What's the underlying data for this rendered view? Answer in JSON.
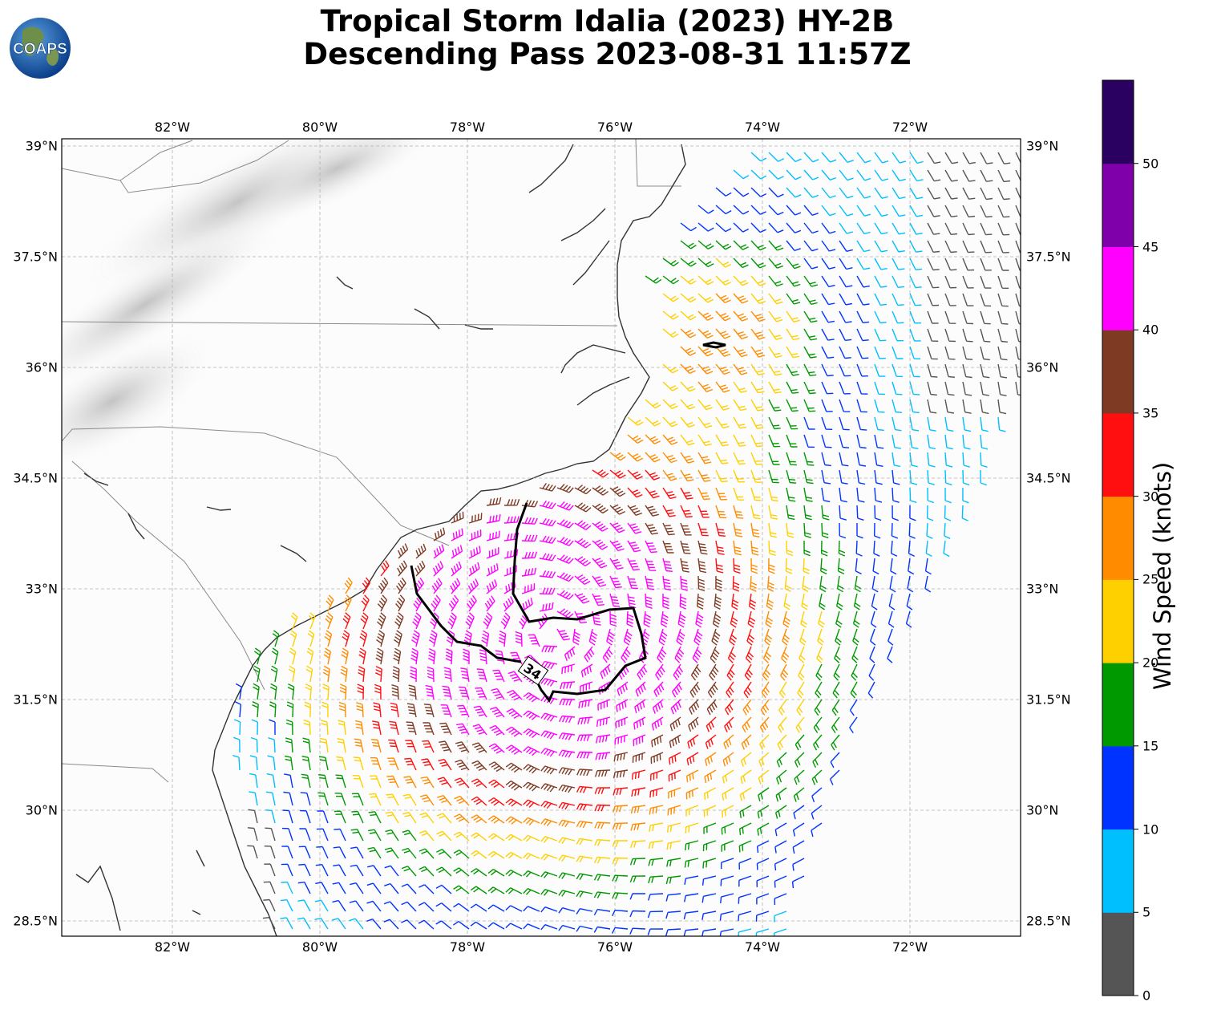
{
  "title": {
    "line1": "Tropical Storm Idalia (2023) HY-2B",
    "line2": "Descending Pass 2023-08-31 11:57Z"
  },
  "logo": {
    "text": "COAPS",
    "icon": "globe-logo"
  },
  "map": {
    "lon_ticks": [
      "82°W",
      "80°W",
      "78°W",
      "76°W",
      "74°W",
      "72°W"
    ],
    "lat_ticks": [
      "39°N",
      "37.5°N",
      "36°N",
      "34.5°N",
      "33°N",
      "31.5°N",
      "30°N",
      "28.5°N"
    ],
    "contour_label": "34",
    "extent": {
      "lon": [
        -83.5,
        -70.5
      ],
      "lat": [
        28.3,
        39.1
      ]
    }
  },
  "colorbar": {
    "label": "Wind Speed (knots)",
    "ticks": [
      "0",
      "5",
      "10",
      "15",
      "20",
      "25",
      "30",
      "35",
      "40",
      "45",
      "50"
    ],
    "bins": [
      {
        "range": "0-5",
        "color": "#555555"
      },
      {
        "range": "5-10",
        "color": "#00bfff"
      },
      {
        "range": "10-15",
        "color": "#0033ff"
      },
      {
        "range": "15-20",
        "color": "#009900"
      },
      {
        "range": "20-25",
        "color": "#ffd000"
      },
      {
        "range": "25-30",
        "color": "#ff8c00"
      },
      {
        "range": "30-35",
        "color": "#ff0f0f"
      },
      {
        "range": "35-40",
        "color": "#7f3a24"
      },
      {
        "range": "40-45",
        "color": "#ff00ff"
      },
      {
        "range": "45-50",
        "color": "#7f00aa"
      },
      {
        "range": "50-55",
        "color": "#2a0060"
      }
    ]
  }
}
